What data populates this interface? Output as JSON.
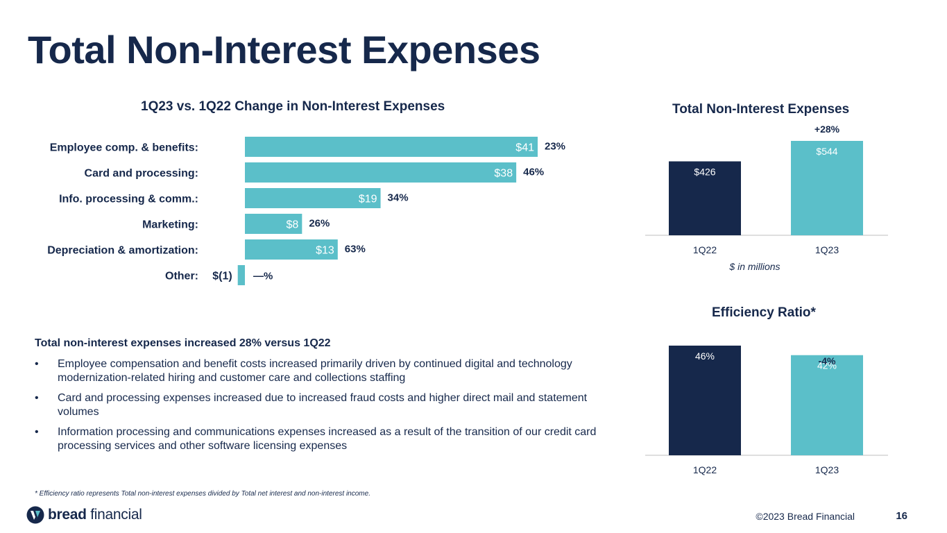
{
  "page": {
    "title": "Total Non-Interest Expenses"
  },
  "change_chart_title": "1Q23 vs. 1Q22 Change in Non-Interest Expenses",
  "total_chart_title": "Total Non-Interest Expenses",
  "total_chart_note": "$ in millions",
  "efficiency_chart_title": "Efficiency Ratio*",
  "colors": {
    "navy": "#16284b",
    "teal": "#5bbfc9",
    "axis": "#bfbfbf"
  },
  "chart_data": [
    {
      "type": "bar",
      "orientation": "horizontal",
      "title": "1Q23 vs. 1Q22 Change in Non-Interest Expenses",
      "categories": [
        "Employee comp. & benefits:",
        "Card and processing:",
        "Info. processing & comm.:",
        "Marketing:",
        "Depreciation & amortization:",
        "Other:"
      ],
      "values": [
        41,
        38,
        19,
        8,
        13,
        -1
      ],
      "value_labels": [
        "$41",
        "$38",
        "$19",
        "$8",
        "$13",
        "$(1)"
      ],
      "percent_labels": [
        "23%",
        "46%",
        "34%",
        "26%",
        "63%",
        "—%"
      ],
      "xlim": [
        0,
        41
      ],
      "units": "$ in millions"
    },
    {
      "type": "bar",
      "title": "Total Non-Interest Expenses",
      "categories": [
        "1Q22",
        "1Q23"
      ],
      "values": [
        426,
        544
      ],
      "value_labels": [
        "$426",
        "$544"
      ],
      "change_label": "+28%",
      "xlabel": "$ in millions",
      "ylim": [
        0,
        544
      ]
    },
    {
      "type": "bar",
      "title": "Efficiency Ratio*",
      "categories": [
        "1Q22",
        "1Q23"
      ],
      "values": [
        46,
        42
      ],
      "value_labels": [
        "46%",
        "42%"
      ],
      "change_label": "-4%",
      "ylim": [
        0,
        46
      ]
    }
  ],
  "summary": {
    "heading": "Total non-interest expenses increased 28% versus 1Q22",
    "bullet_symbol": "•",
    "bullets": [
      "Employee compensation and benefit costs increased primarily driven by continued digital and technology modernization-related hiring and customer care and collections staffing",
      "Card and processing expenses increased due to increased fraud costs and higher direct mail and statement volumes",
      "Information processing and communications expenses increased as a result of the transition of our credit card processing services and other software licensing expenses"
    ]
  },
  "footnote": "* Efficiency ratio represents Total non-interest expenses divided by Total net interest and non-interest income.",
  "footer": {
    "logo_bold": "bread",
    "logo_light": "financial",
    "logo_icon": "bread-logo-icon",
    "copyright": "©2023 Bread Financial",
    "page_number": "16"
  }
}
